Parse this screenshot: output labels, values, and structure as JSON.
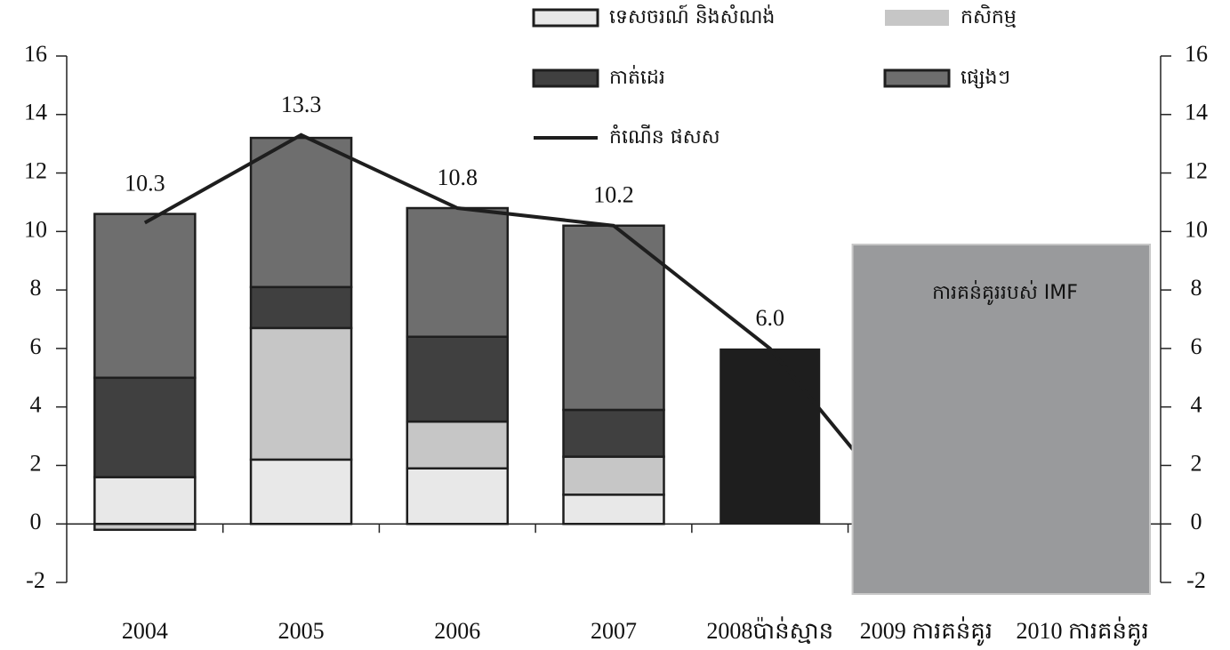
{
  "chart_data": {
    "type": "bar",
    "categories": [
      "2004",
      "2005",
      "2006",
      "2007",
      "2008ប៉ាន់ស្មាន",
      "2009 ការគន់គូរ",
      "2010 ការគន់គូរ"
    ],
    "series": [
      {
        "name": "ទេសចរណ៍ និងសំណង់",
        "color": "#e8e8e8",
        "values": [
          1.6,
          2.2,
          1.9,
          1.0,
          null,
          null,
          null
        ]
      },
      {
        "name": "កសិកម្ម",
        "color": "#c6c6c6",
        "values": [
          -0.2,
          4.5,
          1.6,
          1.3,
          null,
          null,
          null
        ]
      },
      {
        "name": "កាត់ដេរ",
        "color": "#404040",
        "values": [
          3.4,
          1.4,
          2.9,
          1.6,
          null,
          null,
          null
        ]
      },
      {
        "name": "ផ្សេងៗ",
        "color": "#6e6e6e",
        "values": [
          5.6,
          5.1,
          4.4,
          6.3,
          null,
          null,
          null
        ]
      },
      {
        "color": "#1e1e1e",
        "values": [
          null,
          null,
          null,
          null,
          6.0,
          null,
          null
        ]
      },
      {
        "name": "កំណើន ផសស",
        "type": "line",
        "color": "#1e1e1e",
        "values": [
          10.3,
          13.3,
          10.8,
          10.2,
          6.0,
          -0.5,
          null
        ],
        "value_labels": [
          "10.3",
          "13.3",
          "10.8",
          "10.2",
          "6.0",
          null,
          null
        ]
      }
    ],
    "annotation": "ការគន់គូររបស់ IMF",
    "ylim": [
      -2,
      16
    ],
    "yticks": [
      -2,
      0,
      2,
      4,
      6,
      8,
      10,
      12,
      14,
      16
    ],
    "y2lim": [
      -2,
      16
    ],
    "y2ticks": [
      -2,
      0,
      2,
      4,
      6,
      8,
      10,
      12,
      14,
      16
    ],
    "grid": false
  }
}
